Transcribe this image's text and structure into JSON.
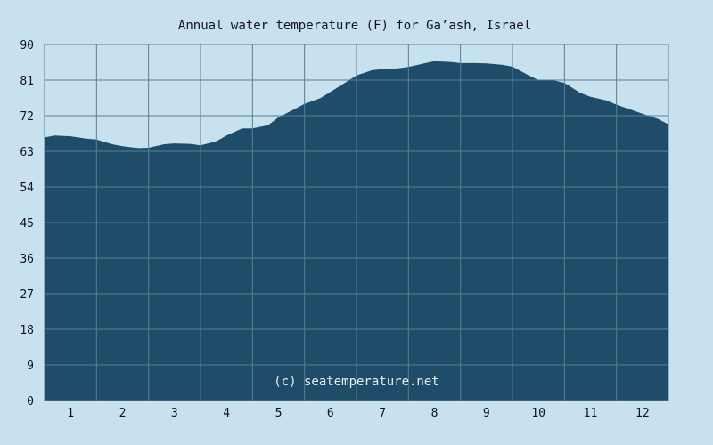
{
  "chart_data": {
    "type": "area",
    "title": "Annual water temperature (F) for Ga’ash, Israel",
    "watermark": "(c) seatemperature.net",
    "xlabel": "",
    "ylabel": "",
    "x_ticks": [
      "1",
      "2",
      "3",
      "4",
      "5",
      "6",
      "7",
      "8",
      "9",
      "10",
      "11",
      "12"
    ],
    "y_ticks": [
      "0",
      "9",
      "18",
      "27",
      "36",
      "45",
      "54",
      "63",
      "72",
      "81",
      "90"
    ],
    "xlim": [
      0.5,
      12.5
    ],
    "ylim": [
      0,
      90
    ],
    "grid": true,
    "fill_color": "#1f4d69",
    "background_color": "#c8e1ef",
    "series": [
      {
        "x": [
          0.5,
          0.7,
          1.0,
          1.3,
          1.5,
          1.8,
          2.0,
          2.3,
          2.5,
          2.8,
          3.0,
          3.3,
          3.5,
          3.8,
          4.0,
          4.3,
          4.5,
          4.8,
          5.0,
          5.3,
          5.5,
          5.8,
          6.0,
          6.3,
          6.5,
          6.8,
          7.0,
          7.3,
          7.5,
          7.8,
          8.0,
          8.3,
          8.5,
          8.8,
          9.0,
          9.3,
          9.5,
          9.8,
          10.0,
          10.3,
          10.5,
          10.8,
          11.0,
          11.3,
          11.5,
          11.8,
          12.0,
          12.3,
          12.5
        ],
        "values": [
          66.5,
          67.0,
          66.8,
          66.2,
          66.0,
          64.8,
          64.3,
          63.8,
          63.9,
          64.8,
          65.0,
          64.9,
          64.5,
          65.5,
          67.0,
          68.8,
          68.8,
          69.6,
          71.6,
          73.6,
          75.0,
          76.4,
          78.0,
          80.5,
          82.2,
          83.5,
          83.8,
          84.0,
          84.3,
          85.2,
          85.8,
          85.6,
          85.3,
          85.3,
          85.2,
          84.9,
          84.4,
          82.3,
          81.0,
          80.9,
          80.3,
          77.8,
          76.8,
          75.9,
          74.8,
          73.4,
          72.5,
          71.2,
          69.8
        ]
      }
    ]
  }
}
